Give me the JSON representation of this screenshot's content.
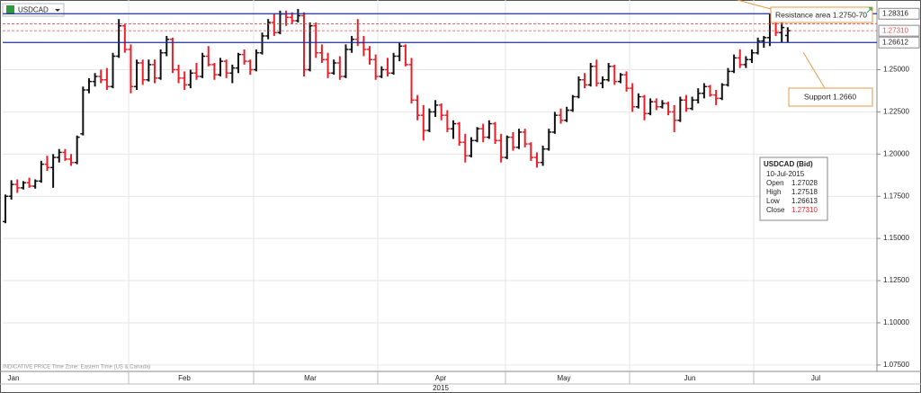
{
  "chart_data": {
    "type": "ohlc",
    "ticker": "USDCAD",
    "up_color": "#111111",
    "down_color": "#e8202a",
    "ylim": [
      1.0712,
      1.2913
    ],
    "yticks": [
      {
        "value": 1.075,
        "label": "1.07500"
      },
      {
        "value": 1.1,
        "label": "1.10000"
      },
      {
        "value": 1.125,
        "label": "1.12500"
      },
      {
        "value": 1.15,
        "label": "1.15000"
      },
      {
        "value": 1.175,
        "label": "1.17500"
      },
      {
        "value": 1.2,
        "label": "1.20000"
      },
      {
        "value": 1.225,
        "label": "1.22500"
      },
      {
        "value": 1.25,
        "label": "1.25000"
      }
    ],
    "grid": true,
    "months": [
      "Jan",
      "Feb",
      "Mar",
      "Apr",
      "May",
      "Jun",
      "Jul"
    ],
    "year": "2015",
    "footer": "INDICATIVE PRICE   Time Zone: Eastern Time (US & Canada)",
    "levels": [
      {
        "value": 1.28316,
        "label": "1.28316",
        "color": "#1f2f9e",
        "style": "solid"
      },
      {
        "value": 1.2772,
        "color": "#e05050",
        "style": "dashed"
      },
      {
        "value": 1.2731,
        "label": "1.27310",
        "color": "#e05050",
        "style": "dashed"
      },
      {
        "value": 1.26612,
        "label": "1.26612",
        "color": "#1f2f9e",
        "style": "solid"
      }
    ],
    "annotations": [
      {
        "text": "Resistance area 1.2750-70"
      },
      {
        "text": "Support 1.2660"
      }
    ],
    "info_box": {
      "title": "USDCAD (Bid)",
      "date": "10-Jul-2015",
      "rows": [
        [
          "Open",
          "1.27028"
        ],
        [
          "High",
          "1.27518"
        ],
        [
          "Low",
          "1.26613"
        ],
        [
          "Close",
          "1.27310"
        ]
      ]
    },
    "bars": [
      [
        1.16,
        1.176,
        1.159,
        1.175
      ],
      [
        1.175,
        1.1845,
        1.173,
        1.182
      ],
      [
        1.182,
        1.185,
        1.177,
        1.18
      ],
      [
        1.18,
        1.184,
        1.179,
        1.183
      ],
      [
        1.183,
        1.186,
        1.18,
        1.181
      ],
      [
        1.181,
        1.185,
        1.1795,
        1.184
      ],
      [
        1.184,
        1.196,
        1.183,
        1.194
      ],
      [
        1.194,
        1.199,
        1.19,
        1.192
      ],
      [
        1.192,
        1.2,
        1.18,
        1.198
      ],
      [
        1.198,
        1.203,
        1.195,
        1.201
      ],
      [
        1.201,
        1.203,
        1.196,
        1.197
      ],
      [
        1.197,
        1.2,
        1.193,
        1.195
      ],
      [
        1.195,
        1.211,
        1.194,
        1.21
      ],
      [
        1.212,
        1.24,
        1.211,
        1.238
      ],
      [
        1.238,
        1.245,
        1.236,
        1.243
      ],
      [
        1.243,
        1.248,
        1.24,
        1.246
      ],
      [
        1.246,
        1.25,
        1.242,
        1.244
      ],
      [
        1.244,
        1.251,
        1.238,
        1.24
      ],
      [
        1.24,
        1.26,
        1.239,
        1.258
      ],
      [
        1.258,
        1.28,
        1.257,
        1.276
      ],
      [
        1.276,
        1.277,
        1.26,
        1.262
      ],
      [
        1.262,
        1.265,
        1.236,
        1.24
      ],
      [
        1.24,
        1.256,
        1.238,
        1.254
      ],
      [
        1.254,
        1.256,
        1.241,
        1.244
      ],
      [
        1.244,
        1.256,
        1.243,
        1.253
      ],
      [
        1.253,
        1.256,
        1.242,
        1.245
      ],
      [
        1.245,
        1.262,
        1.244,
        1.26
      ],
      [
        1.26,
        1.27,
        1.258,
        1.268
      ],
      [
        1.268,
        1.269,
        1.248,
        1.25
      ],
      [
        1.25,
        1.253,
        1.242,
        1.245
      ],
      [
        1.245,
        1.249,
        1.238,
        1.241
      ],
      [
        1.241,
        1.25,
        1.239,
        1.248
      ],
      [
        1.248,
        1.254,
        1.244,
        1.246
      ],
      [
        1.246,
        1.26,
        1.245,
        1.258
      ],
      [
        1.258,
        1.264,
        1.252,
        1.253
      ],
      [
        1.253,
        1.254,
        1.244,
        1.247
      ],
      [
        1.247,
        1.257,
        1.246,
        1.255
      ],
      [
        1.255,
        1.256,
        1.245,
        1.248
      ],
      [
        1.248,
        1.253,
        1.242,
        1.251
      ],
      [
        1.251,
        1.26,
        1.248,
        1.259
      ],
      [
        1.259,
        1.262,
        1.253,
        1.255
      ],
      [
        1.255,
        1.256,
        1.247,
        1.25
      ],
      [
        1.25,
        1.262,
        1.249,
        1.26
      ],
      [
        1.26,
        1.272,
        1.259,
        1.27
      ],
      [
        1.27,
        1.28,
        1.268,
        1.278
      ],
      [
        1.278,
        1.283,
        1.27,
        1.272
      ],
      [
        1.272,
        1.285,
        1.271,
        1.283
      ],
      [
        1.283,
        1.285,
        1.276,
        1.281
      ],
      [
        1.281,
        1.284,
        1.277,
        1.279
      ],
      [
        1.279,
        1.286,
        1.278,
        1.282
      ],
      [
        1.282,
        1.284,
        1.246,
        1.25
      ],
      [
        1.25,
        1.278,
        1.249,
        1.276
      ],
      [
        1.276,
        1.278,
        1.257,
        1.26
      ],
      [
        1.26,
        1.265,
        1.254,
        1.256
      ],
      [
        1.256,
        1.26,
        1.245,
        1.248
      ],
      [
        1.248,
        1.256,
        1.247,
        1.254
      ],
      [
        1.254,
        1.258,
        1.244,
        1.246
      ],
      [
        1.246,
        1.265,
        1.245,
        1.262
      ],
      [
        1.262,
        1.27,
        1.26,
        1.268
      ],
      [
        1.268,
        1.28,
        1.264,
        1.266
      ],
      [
        1.266,
        1.27,
        1.258,
        1.262
      ],
      [
        1.262,
        1.264,
        1.253,
        1.256
      ],
      [
        1.256,
        1.259,
        1.244,
        1.246
      ],
      [
        1.246,
        1.252,
        1.245,
        1.25
      ],
      [
        1.25,
        1.257,
        1.246,
        1.248
      ],
      [
        1.248,
        1.26,
        1.247,
        1.258
      ],
      [
        1.258,
        1.266,
        1.255,
        1.264
      ],
      [
        1.264,
        1.265,
        1.252,
        1.253
      ],
      [
        1.253,
        1.257,
        1.23,
        1.232
      ],
      [
        1.232,
        1.235,
        1.22,
        1.223
      ],
      [
        1.223,
        1.229,
        1.208,
        1.214
      ],
      [
        1.214,
        1.227,
        1.213,
        1.225
      ],
      [
        1.225,
        1.232,
        1.222,
        1.229
      ],
      [
        1.229,
        1.23,
        1.22,
        1.223
      ],
      [
        1.223,
        1.226,
        1.213,
        1.215
      ],
      [
        1.215,
        1.22,
        1.209,
        1.218
      ],
      [
        1.218,
        1.219,
        1.205,
        1.207
      ],
      [
        1.207,
        1.212,
        1.195,
        1.199
      ],
      [
        1.199,
        1.21,
        1.198,
        1.208
      ],
      [
        1.208,
        1.216,
        1.207,
        1.215
      ],
      [
        1.215,
        1.218,
        1.207,
        1.21
      ],
      [
        1.21,
        1.22,
        1.209,
        1.218
      ],
      [
        1.218,
        1.219,
        1.206,
        1.208
      ],
      [
        1.208,
        1.212,
        1.195,
        1.198
      ],
      [
        1.198,
        1.211,
        1.197,
        1.21
      ],
      [
        1.21,
        1.213,
        1.202,
        1.204
      ],
      [
        1.204,
        1.215,
        1.203,
        1.213
      ],
      [
        1.213,
        1.215,
        1.204,
        1.206
      ],
      [
        1.206,
        1.207,
        1.196,
        1.198
      ],
      [
        1.198,
        1.201,
        1.192,
        1.195
      ],
      [
        1.195,
        1.205,
        1.193,
        1.203
      ],
      [
        1.203,
        1.215,
        1.202,
        1.213
      ],
      [
        1.213,
        1.225,
        1.212,
        1.223
      ],
      [
        1.223,
        1.227,
        1.218,
        1.22
      ],
      [
        1.22,
        1.228,
        1.219,
        1.226
      ],
      [
        1.226,
        1.235,
        1.225,
        1.234
      ],
      [
        1.234,
        1.246,
        1.233,
        1.244
      ],
      [
        1.244,
        1.248,
        1.239,
        1.241
      ],
      [
        1.241,
        1.254,
        1.24,
        1.252
      ],
      [
        1.252,
        1.256,
        1.24,
        1.242
      ],
      [
        1.242,
        1.246,
        1.239,
        1.244
      ],
      [
        1.244,
        1.254,
        1.243,
        1.252
      ],
      [
        1.252,
        1.253,
        1.241,
        1.243
      ],
      [
        1.243,
        1.248,
        1.242,
        1.247
      ],
      [
        1.247,
        1.249,
        1.237,
        1.239
      ],
      [
        1.239,
        1.242,
        1.225,
        1.228
      ],
      [
        1.228,
        1.236,
        1.227,
        1.234
      ],
      [
        1.234,
        1.235,
        1.22,
        1.224
      ],
      [
        1.224,
        1.233,
        1.223,
        1.231
      ],
      [
        1.231,
        1.233,
        1.226,
        1.228
      ],
      [
        1.228,
        1.232,
        1.227,
        1.23
      ],
      [
        1.23,
        1.231,
        1.223,
        1.225
      ],
      [
        1.225,
        1.229,
        1.213,
        1.22
      ],
      [
        1.22,
        1.234,
        1.219,
        1.232
      ],
      [
        1.232,
        1.235,
        1.225,
        1.227
      ],
      [
        1.227,
        1.234,
        1.226,
        1.232
      ],
      [
        1.232,
        1.239,
        1.23,
        1.236
      ],
      [
        1.236,
        1.242,
        1.233,
        1.24
      ],
      [
        1.24,
        1.241,
        1.234,
        1.235
      ],
      [
        1.235,
        1.238,
        1.229,
        1.233
      ],
      [
        1.233,
        1.242,
        1.232,
        1.241
      ],
      [
        1.241,
        1.251,
        1.24,
        1.249
      ],
      [
        1.249,
        1.259,
        1.248,
        1.257
      ],
      [
        1.257,
        1.262,
        1.251,
        1.253
      ],
      [
        1.253,
        1.258,
        1.251,
        1.256
      ],
      [
        1.256,
        1.262,
        1.254,
        1.26
      ],
      [
        1.26,
        1.269,
        1.259,
        1.267
      ],
      [
        1.267,
        1.27,
        1.263,
        1.269
      ],
      [
        1.269,
        1.283,
        1.264,
        1.28
      ],
      [
        1.28,
        1.282,
        1.27,
        1.272
      ],
      [
        1.272,
        1.278,
        1.266,
        1.275
      ],
      [
        1.27028,
        1.27518,
        1.26613,
        1.2731
      ]
    ]
  }
}
